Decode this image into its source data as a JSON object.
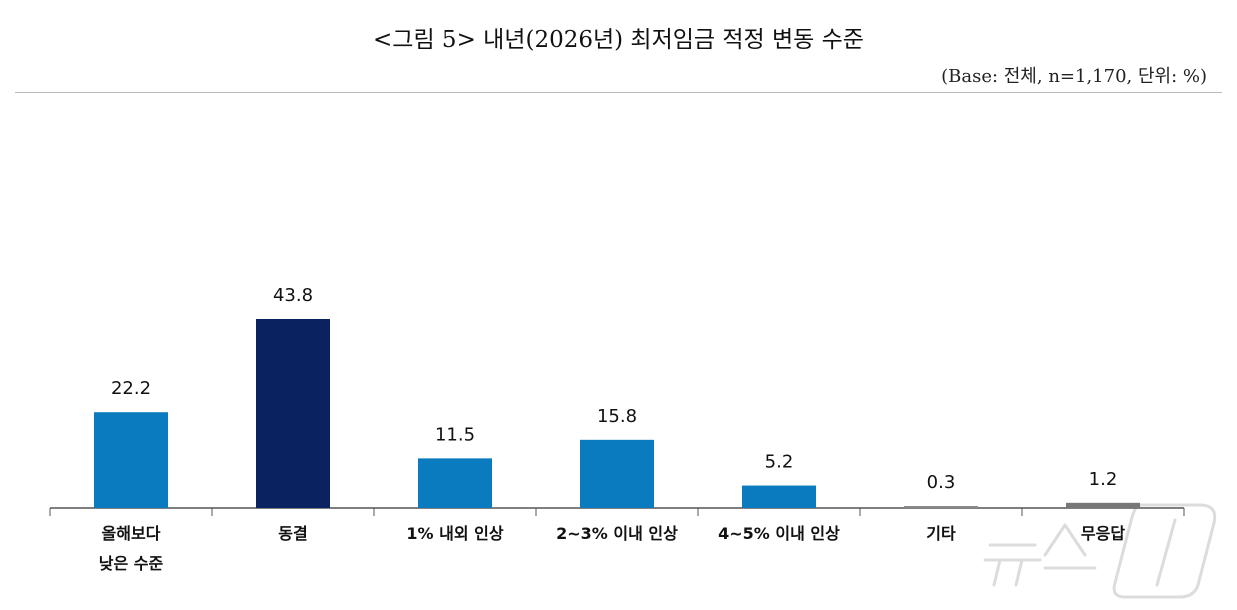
{
  "title": "<그림 5> 내년(2026년) 최저임금 적정 변동 수준",
  "subtitle": "(Base: 전체, n=1,170, 단위: %)",
  "watermark": "뉴스1",
  "chart_data": {
    "type": "bar",
    "title": "<그림 5> 내년(2026년) 최저임금 적정 변동 수준",
    "xlabel": "",
    "ylabel": "",
    "categories": [
      "올해보다\n낮은 수준",
      "동결",
      "1% 내외 인상",
      "2~3% 이내 인상",
      "4~5% 이내 인상",
      "기타",
      "무응답"
    ],
    "values": [
      22.2,
      43.8,
      11.5,
      15.8,
      5.2,
      0.3,
      1.2
    ],
    "value_labels": [
      "22.2",
      "43.8",
      "11.5",
      "15.8",
      "5.2",
      "0.3",
      "1.2"
    ],
    "colors": [
      "#0a7bbf",
      "#0b2260",
      "#0a7bbf",
      "#0a7bbf",
      "#0a7bbf",
      "#8a8a8a",
      "#777777"
    ],
    "ylim": [
      0,
      50
    ],
    "grid": false,
    "legend": "none"
  }
}
